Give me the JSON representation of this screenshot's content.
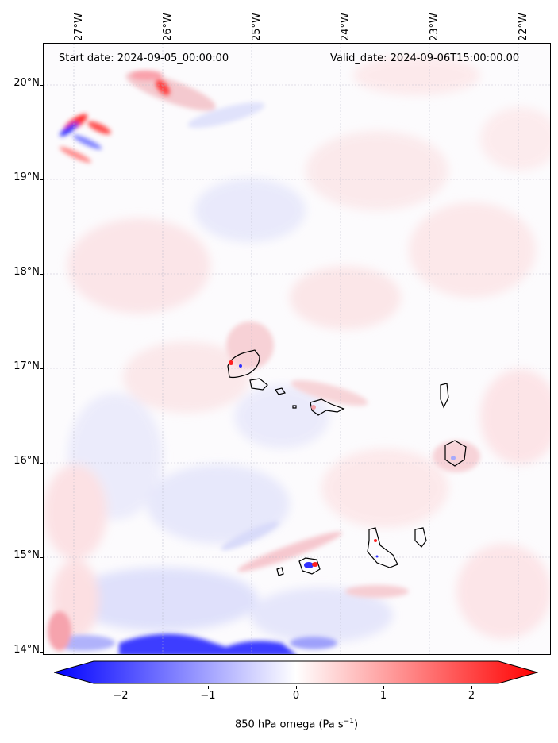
{
  "map": {
    "start_date": "Start date: 2024-09-05_00:00:00",
    "valid_date": "Valid_date: 2024-09-06T15:00:00.00",
    "lon_labels": [
      "27°W",
      "26°W",
      "25°W",
      "24°W",
      "23°W",
      "22°W"
    ],
    "lat_labels": [
      "20°N",
      "19°N",
      "18°N",
      "17°N",
      "16°N",
      "15°N",
      "14°N"
    ]
  },
  "colorbar": {
    "tick_labels": [
      "−2",
      "−1",
      "0",
      "1",
      "2"
    ],
    "label": "850 hPa omega (Pa s",
    "label_exp": "−1",
    "label_close": ")",
    "cmap": "bwr",
    "vmin": -2.7,
    "vmax": 2.7,
    "colors": {
      "negative": "#0000ff",
      "zero": "#ffffff",
      "positive": "#ff0000"
    }
  }
}
